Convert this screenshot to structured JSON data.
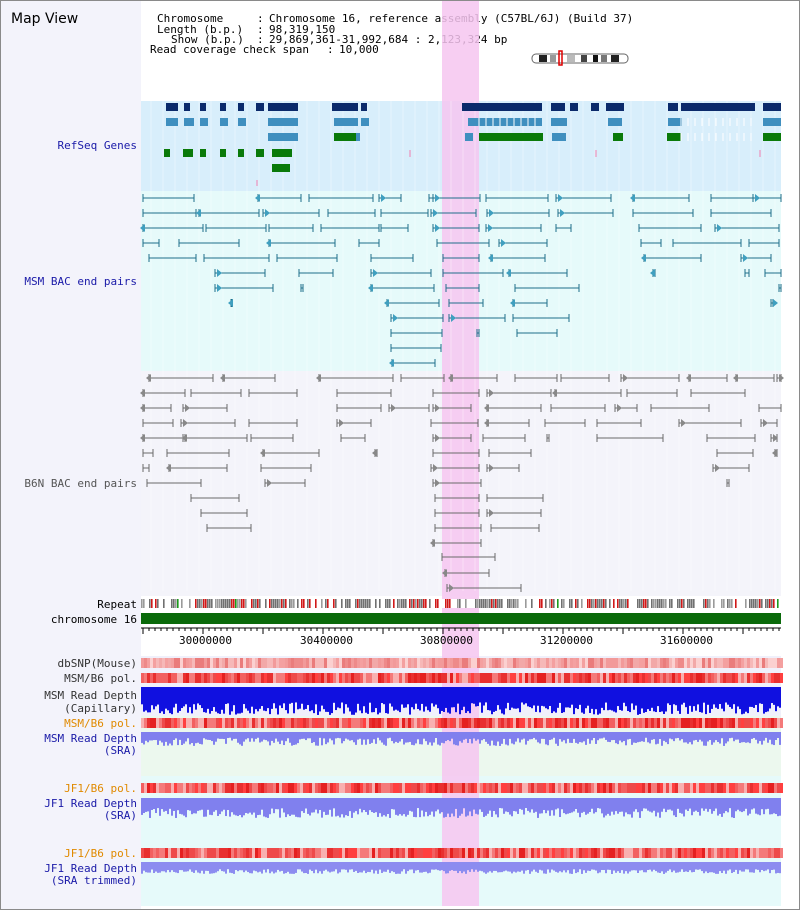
{
  "window_title": "Map View",
  "header": {
    "chromosome_key": "Chromosome",
    "chromosome_val": "Chromosome 16, reference assembly (C57BL/6J) (Build 37)",
    "length_key": "Length (b.p.)",
    "length_val": "98,319,150",
    "show_key": "Show (b.p.)",
    "show_val": "29,869,361-31,992,684 : 2,123,324 bp",
    "coverage_key": "Read coverage check span",
    "coverage_val": "10,000"
  },
  "tracks": {
    "refseq": "RefSeq Genes",
    "msm_bac": "MSM BAC end pairs",
    "b6n_bac": "B6N BAC end pairs",
    "repeat": "Repeat",
    "chromosome": "chromosome 16",
    "dbsnp": "dbSNP(Mouse)",
    "msm_b6_pol_1": "MSM/B6 pol.",
    "msm_depth_cap_1": "MSM Read Depth",
    "msm_depth_cap_2": "(Capillary)",
    "msm_b6_pol_2": "MSM/B6 pol.",
    "msm_depth_sra_1": "MSM Read Depth",
    "msm_depth_sra_2": "(SRA)",
    "jf1_b6_pol_1": "JF1/B6 pol.",
    "jf1_depth_sra_1": "JF1 Read Depth",
    "jf1_depth_sra_2": "(SRA)",
    "jf1_b6_pol_2": "JF1/B6 pol.",
    "jf1_depth_trim_1": "JF1 Read Depth",
    "jf1_depth_trim_2": "(SRA trimmed)"
  },
  "axis_ticks": [
    "30000000",
    "30400000",
    "30800000",
    "31200000",
    "31600000"
  ],
  "colors": {
    "highlight": "#f6c6f0",
    "refseq_bg": "#d8eefb",
    "msm_bg": "#e6fafa",
    "b6n_bg": "#f4f4fa",
    "label_blue": "#1a1aa8",
    "label_orange": "#e08a00",
    "gene_navy": "#0b2a6b",
    "gene_steel": "#3f8fbf",
    "gene_green": "#0a7a0a",
    "bac_teal": "#1f6f8a",
    "bac_gray": "#6a6a6a",
    "chrom_green": "#0a6a0a"
  }
}
